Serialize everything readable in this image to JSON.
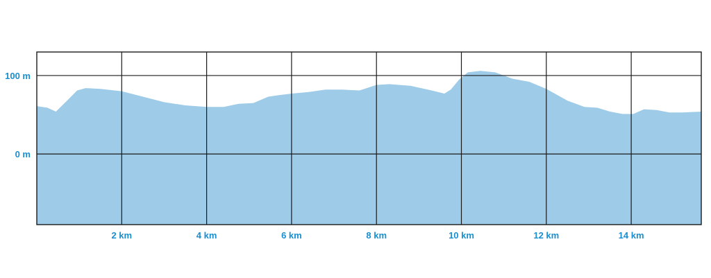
{
  "chart_data": {
    "type": "area",
    "x_unit": "km",
    "y_unit": "m",
    "xlim": [
      0,
      15.65
    ],
    "ylim": [
      -90,
      130
    ],
    "grid": true,
    "x_ticks": [
      {
        "value": 2,
        "label": "2"
      },
      {
        "value": 4,
        "label": "4"
      },
      {
        "value": 6,
        "label": "6"
      },
      {
        "value": 8,
        "label": "8"
      },
      {
        "value": 10,
        "label": "10"
      },
      {
        "value": 12,
        "label": "12"
      },
      {
        "value": 14,
        "label": "14"
      }
    ],
    "y_ticks": [
      {
        "value": 0,
        "label": "0"
      },
      {
        "value": 100,
        "label": "100"
      }
    ],
    "x": [
      0,
      0.25,
      0.45,
      0.75,
      0.95,
      1.15,
      1.5,
      2.0,
      2.5,
      3.0,
      3.5,
      4.0,
      4.4,
      4.75,
      5.1,
      5.45,
      5.7,
      6.0,
      6.4,
      6.8,
      7.2,
      7.6,
      8.0,
      8.3,
      8.8,
      9.3,
      9.6,
      9.75,
      9.95,
      10.15,
      10.45,
      10.8,
      11.2,
      11.6,
      12.0,
      12.5,
      12.9,
      13.2,
      13.5,
      13.8,
      14.05,
      14.3,
      14.6,
      14.9,
      15.2,
      15.65
    ],
    "y": [
      61,
      59,
      54,
      70,
      81,
      84,
      83,
      80,
      73,
      66,
      62,
      60,
      60,
      64,
      65,
      73,
      75,
      77,
      79,
      82,
      82,
      81,
      88,
      89,
      87,
      81,
      77,
      82,
      95,
      104,
      106,
      104,
      96,
      92,
      83,
      68,
      60,
      59,
      54,
      51,
      51,
      57,
      56,
      53,
      53,
      54
    ],
    "colors": {
      "fill": "#9dcbe8",
      "grid": "#1a1a1a",
      "tick_label": "#1a8fcf"
    }
  }
}
